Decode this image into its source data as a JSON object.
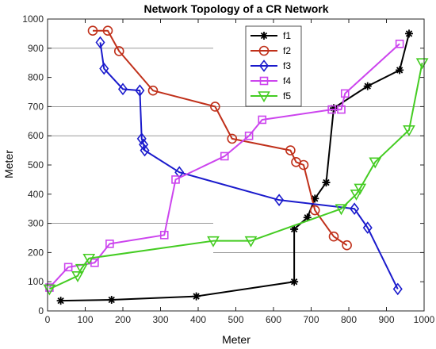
{
  "chart_data": {
    "type": "line",
    "title": "Network Topology of a CR Network",
    "xlabel": "Meter",
    "ylabel": "Meter",
    "xlim": [
      0,
      1000
    ],
    "ylim": [
      0,
      1000
    ],
    "xticks": [
      "0",
      "100",
      "200",
      "300",
      "400",
      "500",
      "600",
      "700",
      "800",
      "900",
      "1000"
    ],
    "yticks": [
      "0",
      "100",
      "200",
      "300",
      "400",
      "500",
      "600",
      "700",
      "800",
      "900",
      "1000"
    ],
    "grid": "partial horizontal lines (region boundaries)",
    "region_lines": [
      {
        "y": 900,
        "x": [
          0,
          440
        ]
      },
      {
        "y": 700,
        "x": [
          0,
          1000
        ]
      },
      {
        "y": 600,
        "x": [
          0,
          1000
        ]
      },
      {
        "y": 300,
        "x": [
          0,
          440
        ]
      },
      {
        "y": 200,
        "x": [
          440,
          1000
        ]
      }
    ],
    "legend_position": "top-right",
    "series": [
      {
        "name": "f1",
        "color": "#000000",
        "marker": "asterisk",
        "x": [
          35,
          170,
          395,
          655,
          655,
          690,
          710,
          740,
          760,
          850,
          935,
          960
        ],
        "y": [
          35,
          38,
          50,
          100,
          280,
          320,
          385,
          440,
          695,
          770,
          825,
          950
        ]
      },
      {
        "name": "f2",
        "color": "#c0301a",
        "marker": "circle",
        "x": [
          120,
          160,
          190,
          280,
          445,
          490,
          645,
          660,
          680,
          710,
          760,
          795
        ],
        "y": [
          960,
          960,
          890,
          755,
          700,
          590,
          550,
          510,
          500,
          345,
          255,
          225
        ]
      },
      {
        "name": "f3",
        "color": "#1a1acc",
        "marker": "diamond",
        "x": [
          140,
          150,
          200,
          245,
          250,
          255,
          258,
          350,
          615,
          815,
          850,
          930
        ],
        "y": [
          920,
          830,
          760,
          755,
          590,
          570,
          550,
          475,
          380,
          350,
          285,
          75
        ]
      },
      {
        "name": "f4",
        "color": "#cc44ee",
        "marker": "square",
        "x": [
          5,
          55,
          125,
          165,
          310,
          340,
          470,
          535,
          570,
          755,
          780,
          790,
          935
        ],
        "y": [
          80,
          150,
          165,
          230,
          260,
          450,
          530,
          600,
          655,
          690,
          690,
          745,
          915
        ]
      },
      {
        "name": "f5",
        "color": "#44cc22",
        "marker": "triangle-down",
        "x": [
          5,
          80,
          90,
          110,
          440,
          540,
          780,
          820,
          830,
          870,
          960,
          995
        ],
        "y": [
          75,
          120,
          145,
          180,
          240,
          240,
          350,
          400,
          420,
          510,
          620,
          850
        ]
      }
    ]
  }
}
